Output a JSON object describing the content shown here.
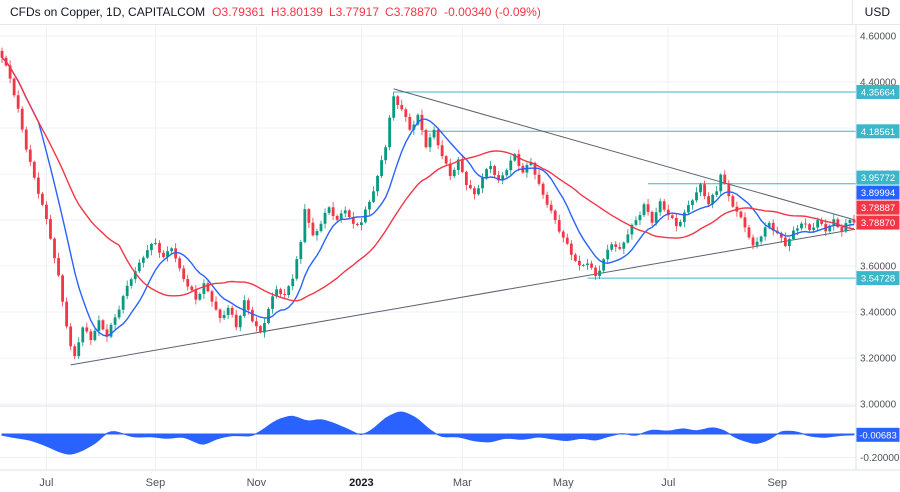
{
  "header": {
    "symbol_title": "CFDs on Copper, 1D, CAPITALCOM",
    "ohlc": {
      "o_label": "O",
      "o": "3.79361",
      "h_label": "H",
      "h": "3.80139",
      "l_label": "L",
      "l": "3.77917",
      "c_label": "C",
      "c": "3.78870"
    },
    "change": "-0.00340 (-0.09%)",
    "currency": "USD"
  },
  "colors": {
    "up": "#089981",
    "down": "#f23645",
    "ma_fast": "#2962ff",
    "ma_slow": "#f23645",
    "teal_line": "#3bb6ca",
    "chip_teal": "#3bb6ca",
    "chip_blue": "#2962ff",
    "chip_red": "#f23645",
    "indicator_fill": "#2962ff",
    "trend_line": "#5b6370",
    "grid": "#eef1f7",
    "axis_border": "#dde1ea",
    "axis_text": "#4f5259",
    "title_text": "#131722"
  },
  "chart_data": {
    "type": "candlestick",
    "title": "CFDs on Copper",
    "interval": "1D",
    "exchange": "CAPITALCOM",
    "currency": "USD",
    "ohlc_last": {
      "open": 3.79361,
      "high": 3.80139,
      "low": 3.77917,
      "close": 3.7887,
      "change": -0.0034,
      "change_pct": -0.09
    },
    "y_range": [
      2.95,
      4.65
    ],
    "n_candles": 212,
    "ma_fast_period": 10,
    "ma_slow_period": 30,
    "grid_prices": [
      3.0,
      3.2,
      3.4,
      3.6,
      3.8,
      4.0,
      4.2,
      4.4,
      4.6
    ],
    "y_ticks": [
      {
        "p": 4.6,
        "text": "4.60000"
      },
      {
        "p": 4.4,
        "text": "4.40000"
      },
      {
        "p": 4.0,
        "text": "4.00000"
      },
      {
        "p": 3.6,
        "text": "3.60000"
      },
      {
        "p": 3.4,
        "text": "3.40000"
      },
      {
        "p": 3.2,
        "text": "3.20000"
      },
      {
        "p": 3.0,
        "text": "3.00000"
      }
    ],
    "time_axis": [
      {
        "label": "Jul",
        "i": 11
      },
      {
        "label": "Sep",
        "i": 38
      },
      {
        "label": "Nov",
        "i": 63
      },
      {
        "label": "2023",
        "i": 89,
        "bold": true
      },
      {
        "label": "Mar",
        "i": 114
      },
      {
        "label": "May",
        "i": 139
      },
      {
        "label": "Jul",
        "i": 165
      },
      {
        "label": "Sep",
        "i": 192
      }
    ],
    "price_labels": [
      {
        "text": "4.35664",
        "price": 4.35664,
        "type": "teal"
      },
      {
        "text": "4.18561",
        "price": 4.18561,
        "type": "teal"
      },
      {
        "text": "3.95772",
        "price": 3.95772,
        "type": "teal"
      },
      {
        "text": "3.89994",
        "price": 3.89994,
        "type": "blue"
      },
      {
        "text": "3.78887",
        "price": 3.78887,
        "type": "red"
      },
      {
        "text": "3.78870",
        "price": 3.7887,
        "type": "red"
      },
      {
        "text": "3.54728",
        "price": 3.54728,
        "type": "teal"
      }
    ],
    "horizontal_lines": [
      {
        "price": 4.35664,
        "from_i": 97
      },
      {
        "price": 4.18561,
        "from_i": 104
      },
      {
        "price": 3.95772,
        "from_i": 160
      },
      {
        "price": 3.54728,
        "from_i": 145
      }
    ],
    "trend_lines": [
      {
        "from": [
          97,
          4.37
        ],
        "to": [
          212,
          3.8
        ]
      },
      {
        "from": [
          17,
          3.17
        ],
        "to": [
          212,
          3.76
        ]
      }
    ],
    "close_anchors": [
      [
        0,
        4.5
      ],
      [
        2,
        4.42
      ],
      [
        4,
        4.28
      ],
      [
        6,
        4.12
      ],
      [
        8,
        3.98
      ],
      [
        10,
        3.86
      ],
      [
        12,
        3.72
      ],
      [
        14,
        3.55
      ],
      [
        15,
        3.45
      ],
      [
        16,
        3.35
      ],
      [
        17,
        3.25
      ],
      [
        18,
        3.21
      ],
      [
        19,
        3.28
      ],
      [
        20,
        3.33
      ],
      [
        22,
        3.28
      ],
      [
        24,
        3.35
      ],
      [
        26,
        3.3
      ],
      [
        28,
        3.38
      ],
      [
        30,
        3.47
      ],
      [
        32,
        3.55
      ],
      [
        34,
        3.6
      ],
      [
        36,
        3.67
      ],
      [
        38,
        3.7
      ],
      [
        40,
        3.64
      ],
      [
        42,
        3.69
      ],
      [
        44,
        3.58
      ],
      [
        46,
        3.51
      ],
      [
        48,
        3.45
      ],
      [
        50,
        3.52
      ],
      [
        52,
        3.46
      ],
      [
        54,
        3.37
      ],
      [
        56,
        3.42
      ],
      [
        58,
        3.33
      ],
      [
        60,
        3.44
      ],
      [
        62,
        3.37
      ],
      [
        64,
        3.31
      ],
      [
        66,
        3.42
      ],
      [
        68,
        3.5
      ],
      [
        70,
        3.46
      ],
      [
        72,
        3.55
      ],
      [
        74,
        3.7
      ],
      [
        75,
        3.86
      ],
      [
        77,
        3.73
      ],
      [
        79,
        3.79
      ],
      [
        81,
        3.85
      ],
      [
        83,
        3.79
      ],
      [
        85,
        3.85
      ],
      [
        87,
        3.78
      ],
      [
        89,
        3.8
      ],
      [
        91,
        3.88
      ],
      [
        93,
        3.98
      ],
      [
        95,
        4.12
      ],
      [
        96,
        4.24
      ],
      [
        97,
        4.33
      ],
      [
        99,
        4.29
      ],
      [
        101,
        4.2
      ],
      [
        103,
        4.25
      ],
      [
        105,
        4.12
      ],
      [
        107,
        4.18
      ],
      [
        109,
        4.08
      ],
      [
        111,
        4.0
      ],
      [
        113,
        4.06
      ],
      [
        115,
        3.96
      ],
      [
        117,
        3.9
      ],
      [
        119,
        3.98
      ],
      [
        121,
        4.04
      ],
      [
        123,
        3.97
      ],
      [
        125,
        4.03
      ],
      [
        127,
        4.08
      ],
      [
        129,
        4.0
      ],
      [
        131,
        4.05
      ],
      [
        133,
        3.95
      ],
      [
        135,
        3.88
      ],
      [
        137,
        3.8
      ],
      [
        139,
        3.72
      ],
      [
        141,
        3.65
      ],
      [
        143,
        3.59
      ],
      [
        145,
        3.62
      ],
      [
        147,
        3.56
      ],
      [
        149,
        3.63
      ],
      [
        151,
        3.7
      ],
      [
        153,
        3.66
      ],
      [
        155,
        3.74
      ],
      [
        157,
        3.8
      ],
      [
        159,
        3.87
      ],
      [
        161,
        3.8
      ],
      [
        163,
        3.87
      ],
      [
        165,
        3.82
      ],
      [
        167,
        3.77
      ],
      [
        169,
        3.83
      ],
      [
        171,
        3.9
      ],
      [
        173,
        3.95
      ],
      [
        175,
        3.87
      ],
      [
        177,
        3.92
      ],
      [
        178,
        4.0
      ],
      [
        180,
        3.9
      ],
      [
        182,
        3.84
      ],
      [
        184,
        3.78
      ],
      [
        186,
        3.68
      ],
      [
        188,
        3.73
      ],
      [
        190,
        3.78
      ],
      [
        192,
        3.74
      ],
      [
        194,
        3.7
      ],
      [
        196,
        3.75
      ],
      [
        198,
        3.79
      ],
      [
        200,
        3.75
      ],
      [
        202,
        3.79
      ],
      [
        204,
        3.76
      ],
      [
        206,
        3.8
      ],
      [
        208,
        3.76
      ],
      [
        210,
        3.8
      ],
      [
        211,
        3.789
      ]
    ],
    "indicator": {
      "y_range": [
        -0.25,
        0.25
      ],
      "last_label": {
        "text": "-0.00683",
        "value": -0.00683
      },
      "tick": {
        "v": -0.2,
        "text": "-0.20000"
      },
      "anchors": [
        [
          0,
          -0.01
        ],
        [
          3,
          -0.03
        ],
        [
          7,
          -0.05
        ],
        [
          11,
          -0.1
        ],
        [
          14,
          -0.15
        ],
        [
          17,
          -0.18
        ],
        [
          20,
          -0.14
        ],
        [
          24,
          -0.06
        ],
        [
          26,
          0.02
        ],
        [
          28,
          0.03
        ],
        [
          30,
          0.0
        ],
        [
          33,
          -0.03
        ],
        [
          37,
          -0.02
        ],
        [
          41,
          -0.04
        ],
        [
          45,
          -0.02
        ],
        [
          48,
          -0.07
        ],
        [
          50,
          -0.1
        ],
        [
          53,
          -0.04
        ],
        [
          57,
          -0.01
        ],
        [
          62,
          -0.02
        ],
        [
          64,
          0.02
        ],
        [
          68,
          0.12
        ],
        [
          72,
          0.16
        ],
        [
          76,
          0.1
        ],
        [
          79,
          0.13
        ],
        [
          83,
          0.08
        ],
        [
          87,
          0.02
        ],
        [
          89,
          -0.02
        ],
        [
          92,
          0.04
        ],
        [
          95,
          0.14
        ],
        [
          99,
          0.2
        ],
        [
          103,
          0.13
        ],
        [
          106,
          0.03
        ],
        [
          109,
          -0.03
        ],
        [
          113,
          -0.02
        ],
        [
          117,
          -0.06
        ],
        [
          121,
          -0.07
        ],
        [
          125,
          -0.03
        ],
        [
          129,
          -0.05
        ],
        [
          133,
          -0.02
        ],
        [
          136,
          -0.04
        ],
        [
          140,
          -0.06
        ],
        [
          144,
          -0.03
        ],
        [
          147,
          -0.06
        ],
        [
          150,
          -0.02
        ],
        [
          154,
          0.01
        ],
        [
          157,
          -0.02
        ],
        [
          161,
          0.04
        ],
        [
          165,
          0.02
        ],
        [
          169,
          0.05
        ],
        [
          172,
          0.02
        ],
        [
          176,
          0.06
        ],
        [
          179,
          0.03
        ],
        [
          182,
          -0.04
        ],
        [
          187,
          -0.09
        ],
        [
          191,
          -0.03
        ],
        [
          193,
          0.03
        ],
        [
          197,
          0.02
        ],
        [
          200,
          -0.02
        ],
        [
          204,
          -0.03
        ],
        [
          208,
          -0.01
        ],
        [
          211,
          -0.007
        ]
      ]
    }
  }
}
